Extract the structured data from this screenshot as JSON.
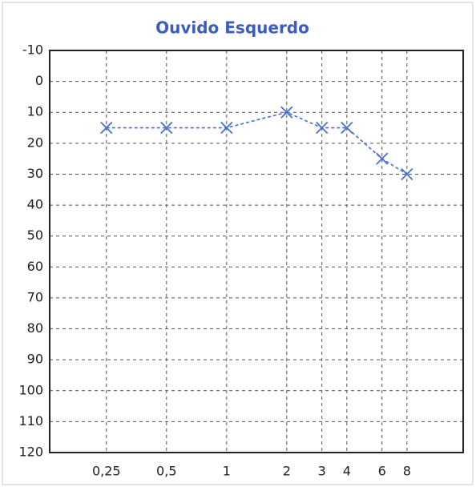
{
  "chart_data": {
    "type": "line",
    "title": "Ouvido Esquerdo",
    "x": [
      0.25,
      0.5,
      1,
      2,
      3,
      4,
      6,
      8
    ],
    "series": [
      {
        "color": "#4a6fd0",
        "values": [
          15,
          15,
          15,
          10,
          15,
          15,
          25,
          30
        ]
      }
    ],
    "xlog": true,
    "xlim": [
      0.13,
      15.3
    ],
    "xticks": [
      {
        "value": 0.25,
        "label": "0,25"
      },
      {
        "value": 0.5,
        "label": "0,5"
      },
      1,
      2,
      3,
      4,
      6,
      8
    ],
    "ylim": [
      -10,
      120
    ],
    "yinverted": true,
    "yticks": [
      -10,
      0,
      10,
      20,
      30,
      40,
      50,
      60,
      70,
      80,
      90,
      100,
      110,
      120
    ],
    "grid": true
  }
}
